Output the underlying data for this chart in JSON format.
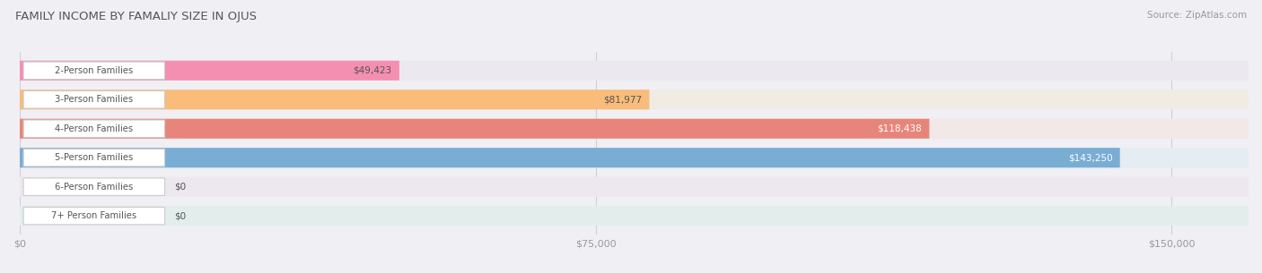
{
  "title": "FAMILY INCOME BY FAMALIY SIZE IN OJUS",
  "source": "Source: ZipAtlas.com",
  "categories": [
    "2-Person Families",
    "3-Person Families",
    "4-Person Families",
    "5-Person Families",
    "6-Person Families",
    "7+ Person Families"
  ],
  "values": [
    49423,
    81977,
    118438,
    143250,
    0,
    0
  ],
  "bar_colors": [
    "#f48fb1",
    "#f9bc7a",
    "#e8857a",
    "#7aadd4",
    "#c5a8d4",
    "#6ecbbc"
  ],
  "label_colors": [
    "#555555",
    "#555555",
    "#ffffff",
    "#ffffff",
    "#555555",
    "#555555"
  ],
  "bg_colors": [
    "#ece8ef",
    "#f0ebe3",
    "#f2e8e7",
    "#e5ecf2",
    "#ede8f0",
    "#e3eeec"
  ],
  "x_ticks": [
    0,
    75000,
    150000
  ],
  "x_tick_labels": [
    "$0",
    "$75,000",
    "$150,000"
  ],
  "xlim_max": 160000,
  "value_labels": [
    "$49,423",
    "$81,977",
    "$118,438",
    "$143,250",
    "$0",
    "$0"
  ],
  "background_color": "#f0eff4",
  "label_box_color": "#ffffff",
  "grid_color": "#d0cdd8",
  "tick_color": "#999999",
  "title_color": "#555555",
  "source_color": "#999999"
}
